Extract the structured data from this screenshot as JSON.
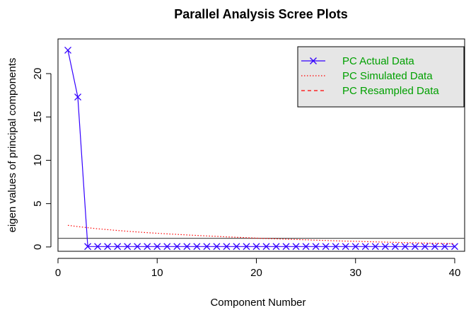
{
  "chart_data": {
    "type": "line",
    "title": "Parallel Analysis Scree Plots",
    "xlabel": "Component Number",
    "ylabel": "eigen values of principal components",
    "xlim": [
      0,
      41
    ],
    "ylim": [
      -0.5,
      24
    ],
    "xticks": [
      0,
      10,
      20,
      30,
      40
    ],
    "yticks": [
      0,
      5,
      10,
      15,
      20
    ],
    "reference_line": 1,
    "legend_placement": "top-right",
    "series": [
      {
        "name": "PC  Actual Data",
        "color": "#3300ff",
        "style": "line-with-x-markers",
        "x": [
          1,
          2,
          3,
          4,
          5,
          6,
          7,
          8,
          9,
          10,
          11,
          12,
          13,
          14,
          15,
          16,
          17,
          18,
          19,
          20,
          21,
          22,
          23,
          24,
          25,
          26,
          27,
          28,
          29,
          30,
          31,
          32,
          33,
          34,
          35,
          36,
          37,
          38,
          39,
          40
        ],
        "values": [
          22.7,
          17.3,
          0.05,
          0.05,
          0.05,
          0.05,
          0.05,
          0.05,
          0.05,
          0.05,
          0.05,
          0.05,
          0.05,
          0.05,
          0.05,
          0.05,
          0.05,
          0.05,
          0.05,
          0.05,
          0.05,
          0.05,
          0.05,
          0.05,
          0.05,
          0.05,
          0.05,
          0.05,
          0.05,
          0.05,
          0.05,
          0.05,
          0.05,
          0.05,
          0.05,
          0.05,
          0.05,
          0.05,
          0.05,
          0.05
        ]
      },
      {
        "name": "PC  Simulated Data",
        "color": "#ff0000",
        "style": "dotted",
        "x": [
          1,
          2,
          3,
          4,
          5,
          6,
          7,
          8,
          9,
          10,
          11,
          12,
          13,
          14,
          15,
          16,
          17,
          18,
          19,
          20,
          21,
          22,
          23,
          24,
          25,
          26,
          27,
          28,
          29,
          30,
          31,
          32,
          33,
          34,
          35,
          36,
          37,
          38,
          39,
          40
        ],
        "values": [
          2.5,
          2.35,
          2.22,
          2.1,
          2.0,
          1.9,
          1.81,
          1.73,
          1.65,
          1.58,
          1.51,
          1.45,
          1.39,
          1.33,
          1.27,
          1.22,
          1.17,
          1.12,
          1.07,
          1.02,
          0.98,
          0.94,
          0.9,
          0.86,
          0.82,
          0.78,
          0.75,
          0.71,
          0.68,
          0.65,
          0.62,
          0.59,
          0.56,
          0.53,
          0.5,
          0.48,
          0.45,
          0.43,
          0.4,
          0.38
        ]
      },
      {
        "name": "PC  Resampled Data",
        "color": "#ff0000",
        "style": "dashed",
        "x": [],
        "values": []
      }
    ]
  }
}
